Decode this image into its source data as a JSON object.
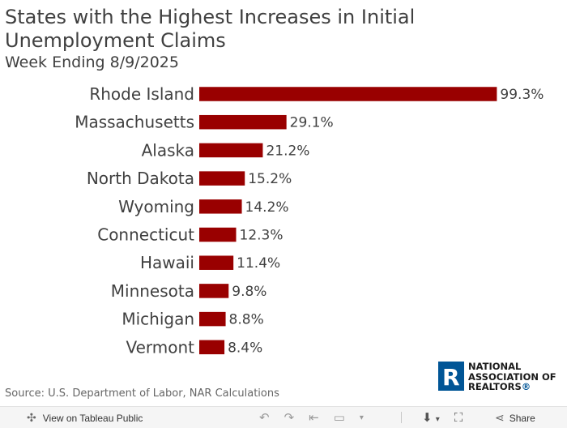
{
  "title": "States with the Highest Increases in Initial Unemployment Claims",
  "subtitle": "Week Ending 8/9/2025",
  "source": "Source: U.S. Department of Labor, NAR Calculations",
  "logo": {
    "line1": "NATIONAL",
    "line2": "ASSOCIATION OF",
    "line3": "REALTORS",
    "reg": "®",
    "mark": "R"
  },
  "toolbar": {
    "view_label": "View on Tableau Public",
    "share_label": "Share"
  },
  "colors": {
    "bar": "#990000",
    "text": "#404040"
  },
  "chart_data": {
    "type": "bar",
    "orientation": "horizontal",
    "title": "States with the Highest Increases in Initial Unemployment Claims",
    "subtitle": "Week Ending 8/9/2025",
    "unit": "%",
    "categories": [
      "Rhode Island",
      "Massachusetts",
      "Alaska",
      "North Dakota",
      "Wyoming",
      "Connecticut",
      "Hawaii",
      "Minnesota",
      "Michigan",
      "Vermont"
    ],
    "values": [
      99.3,
      29.1,
      21.2,
      15.2,
      14.2,
      12.3,
      11.4,
      9.8,
      8.8,
      8.4
    ],
    "labels": [
      "99.3%",
      "29.1%",
      "21.2%",
      "15.2%",
      "14.2%",
      "12.3%",
      "11.4%",
      "9.8%",
      "8.8%",
      "8.4%"
    ],
    "xlim": [
      0,
      100
    ]
  }
}
